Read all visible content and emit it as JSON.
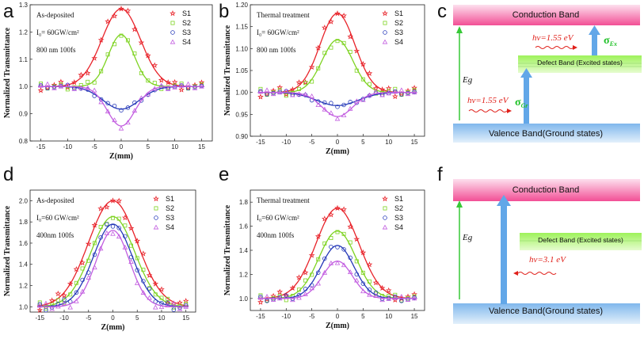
{
  "chart_data": [
    {
      "type": "scatter",
      "panel": "a",
      "xlabel": "Z(mm)",
      "ylabel": "Normalized Transmittance",
      "xlim": [
        -17,
        17
      ],
      "ylim": [
        0.8,
        1.3
      ],
      "xticks": [
        "-15",
        "-10",
        "-5",
        "0",
        "5",
        "10",
        "15"
      ],
      "yticks": [
        "0.8",
        "0.9",
        "1.0",
        "1.1",
        "1.2",
        "1.3"
      ],
      "annotations": [
        "As-deposited",
        "I₀= 60GW/cm²",
        "800 nm 100fs"
      ],
      "series": [
        {
          "name": "S1",
          "marker": "star",
          "color": "#e8232a",
          "peak": 0.285,
          "width": 3.6
        },
        {
          "name": "S2",
          "marker": "square",
          "color": "#7ed321",
          "peak": 0.19,
          "width": 2.4
        },
        {
          "name": "S3",
          "marker": "circle",
          "color": "#2438b8",
          "peak": -0.083,
          "width": 3.4
        },
        {
          "name": "S4",
          "marker": "triangle",
          "color": "#c25de0",
          "peak": -0.145,
          "width": 2.6
        }
      ]
    },
    {
      "type": "scatter",
      "panel": "b",
      "xlabel": "Z(mm)",
      "ylabel": "Normalized Transmittance",
      "xlim": [
        -17,
        17
      ],
      "ylim": [
        0.9,
        1.2
      ],
      "xticks": [
        "-15",
        "-10",
        "-5",
        "0",
        "5",
        "10",
        "15"
      ],
      "yticks": [
        "0.90",
        "0.95",
        "1.00",
        "1.05",
        "1.10",
        "1.15",
        "1.20"
      ],
      "annotations": [
        "Thermal treatment",
        "I₀= 60GW/cm²",
        "800 nm 100fs"
      ],
      "series": [
        {
          "name": "S1",
          "marker": "star",
          "color": "#e8232a",
          "peak": 0.18,
          "width": 3.4
        },
        {
          "name": "S2",
          "marker": "square",
          "color": "#7ed321",
          "peak": 0.12,
          "width": 3.0
        },
        {
          "name": "S3",
          "marker": "circle",
          "color": "#2438b8",
          "peak": -0.03,
          "width": 4.0
        },
        {
          "name": "S4",
          "marker": "triangle",
          "color": "#c25de0",
          "peak": -0.055,
          "width": 3.0
        }
      ]
    },
    {
      "type": "scatter",
      "panel": "d",
      "xlabel": "Z(mm)",
      "ylabel": "Normalized Transmittance",
      "xlim": [
        -17,
        17
      ],
      "ylim": [
        0.95,
        2.1
      ],
      "xticks": [
        "-15",
        "-10",
        "-5",
        "0",
        "5",
        "10",
        "15"
      ],
      "yticks": [
        "1.0",
        "1.2",
        "1.4",
        "1.6",
        "1.8",
        "2.0"
      ],
      "annotations": [
        "As-deposited",
        "I₀=60 GW/cm²",
        "400nm 100fs"
      ],
      "series": [
        {
          "name": "S1",
          "marker": "star",
          "color": "#e8232a",
          "peak": 1.0,
          "width": 5.0
        },
        {
          "name": "S2",
          "marker": "square",
          "color": "#7ed321",
          "peak": 0.85,
          "width": 4.5
        },
        {
          "name": "S3",
          "marker": "circle",
          "color": "#2438b8",
          "peak": 0.78,
          "width": 4.0
        },
        {
          "name": "S4",
          "marker": "triangle",
          "color": "#c25de0",
          "peak": 0.72,
          "width": 3.4
        }
      ]
    },
    {
      "type": "scatter",
      "panel": "e",
      "xlabel": "Z(mm)",
      "ylabel": "Normalized Transmittance",
      "xlim": [
        -17,
        17
      ],
      "ylim": [
        0.9,
        1.9
      ],
      "xticks": [
        "-15",
        "-10",
        "-5",
        "0",
        "5",
        "10",
        "15"
      ],
      "yticks": [
        "1.0",
        "1.2",
        "1.4",
        "1.6",
        "1.8"
      ],
      "annotations": [
        "Thermal treatment",
        "I₀=60 GW/cm²",
        "400nm 100fs"
      ],
      "series": [
        {
          "name": "S1",
          "marker": "star",
          "color": "#e8232a",
          "peak": 0.75,
          "width": 4.2
        },
        {
          "name": "S2",
          "marker": "square",
          "color": "#7ed321",
          "peak": 0.56,
          "width": 3.6
        },
        {
          "name": "S3",
          "marker": "circle",
          "color": "#2438b8",
          "peak": 0.44,
          "width": 3.2
        },
        {
          "name": "S4",
          "marker": "triangle",
          "color": "#c25de0",
          "peak": 0.31,
          "width": 2.9
        }
      ]
    }
  ],
  "panels": {
    "a": "a",
    "b": "b",
    "c": "c",
    "d": "d",
    "e": "e",
    "f": "f"
  },
  "diagram_c": {
    "conduction_band": "Conduction Band",
    "valence_band": "Valence Band(Ground states)",
    "defect_band": "Defect Band (Excited states)",
    "eg": "Eg",
    "photon_top": "hν=1.55 eV",
    "photon_bottom": "hν=1.55 eV",
    "sigma_ex": "σ",
    "sigma_ex_sub": "Ex",
    "sigma_gr": "σ",
    "sigma_gr_sub": "Gr"
  },
  "diagram_f": {
    "conduction_band": "Conduction Band",
    "valence_band": "Valence Band(Ground states)",
    "defect_band": "Defect Band (Excited states)",
    "eg": "Eg",
    "photon": "hν=3.1 eV"
  },
  "colors": {
    "conduction": "#f24f95",
    "valence": "#7fb7ec",
    "defect": "#9ef25a",
    "arrow_blue": "#62a7e8",
    "arrow_green": "#36c936"
  }
}
